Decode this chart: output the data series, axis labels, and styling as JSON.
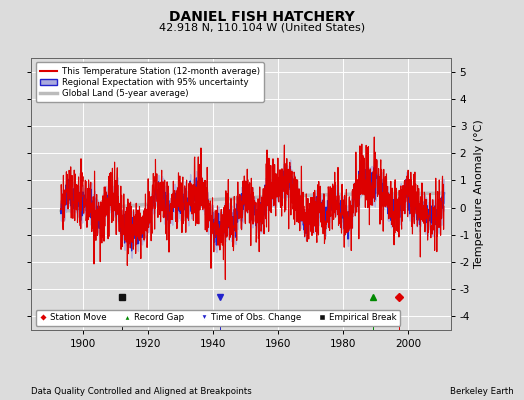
{
  "title": "DANIEL FISH HATCHERY",
  "subtitle": "42.918 N, 110.104 W (United States)",
  "ylabel": "Temperature Anomaly (°C)",
  "xlabel_bottom": "Data Quality Controlled and Aligned at Breakpoints",
  "xlabel_bottom_right": "Berkeley Earth",
  "ylim": [
    -4.5,
    5.5
  ],
  "xlim": [
    1884,
    2013
  ],
  "yticks": [
    -4,
    -3,
    -2,
    -1,
    0,
    1,
    2,
    3,
    4,
    5
  ],
  "xticks": [
    1900,
    1920,
    1940,
    1960,
    1980,
    2000
  ],
  "bg_color": "#dcdcdc",
  "plot_bg_color": "#dcdcdc",
  "grid_color": "#ffffff",
  "station_color": "#dd0000",
  "regional_color": "#2222cc",
  "regional_fill_color": "#aaaadd",
  "global_color": "#bbbbbb",
  "seed": 42,
  "year_start": 1893,
  "year_end": 2011,
  "marker_events": [
    {
      "year": 1997,
      "marker": "D",
      "color": "#dd0000",
      "label": "Station Move"
    },
    {
      "year": 1989,
      "marker": "^",
      "color": "#008800",
      "label": "Record Gap"
    },
    {
      "year": 1942,
      "marker": "v",
      "color": "#2222cc",
      "label": "Time of Obs. Change"
    },
    {
      "year": 1912,
      "marker": "s",
      "color": "#111111",
      "label": "Empirical Break"
    }
  ]
}
